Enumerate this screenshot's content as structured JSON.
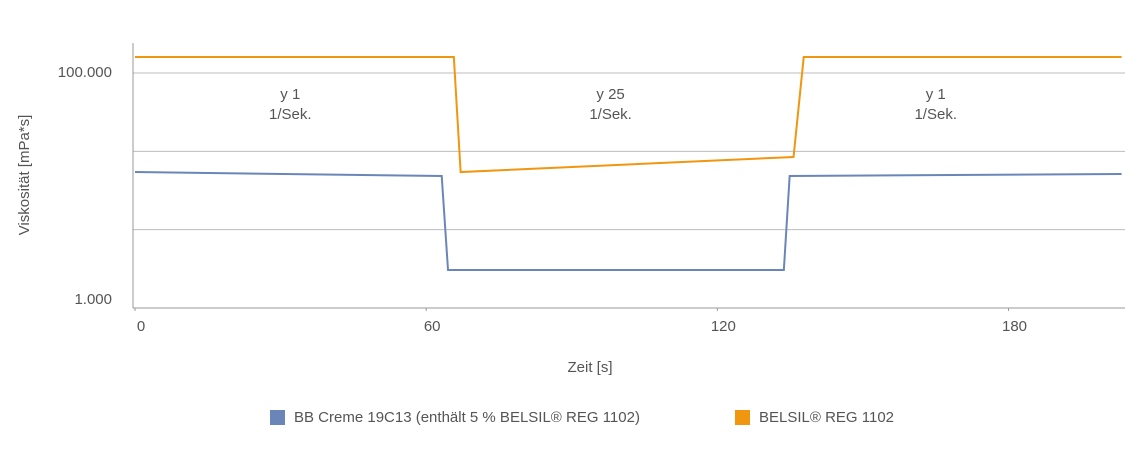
{
  "chart_data": {
    "type": "line",
    "y_label": "Viskosität [mPa*s]",
    "x_label": "Zeit [s]",
    "log_y": true,
    "ylim": [
      1000,
      180000
    ],
    "yticks": [
      {
        "value": 1000,
        "label": "1.000"
      },
      {
        "value": 100000,
        "label": "100.000"
      }
    ],
    "minor_grid": [
      4642,
      21544
    ],
    "grid": true,
    "xlim": [
      0,
      204
    ],
    "xticks": [
      0,
      60,
      120,
      180
    ],
    "annotations": [
      {
        "x": 32,
        "lines": [
          "y 1",
          "1/Sek."
        ]
      },
      {
        "x": 98,
        "lines": [
          "y 25",
          "1/Sek."
        ]
      },
      {
        "x": 165,
        "lines": [
          "y 1",
          "1/Sek."
        ]
      }
    ],
    "series": [
      {
        "name": "BB Creme 19C13 (enthält 5 % BELSIL® REG 1102)",
        "color": "#6a86b8",
        "x": [
          0,
          63.2,
          64.5,
          133.7,
          134.9,
          203.3
        ],
        "values": [
          14360,
          13290,
          2105,
          2105,
          13290,
          13810
        ]
      },
      {
        "name": "BELSIL® REG 1102",
        "color": "#f0960f",
        "x": [
          0,
          65.7,
          67.1,
          135.7,
          137.8,
          203.3
        ],
        "values": [
          136800,
          136800,
          14360,
          19280,
          136800,
          136800
        ]
      }
    ],
    "legend": "bottom"
  }
}
